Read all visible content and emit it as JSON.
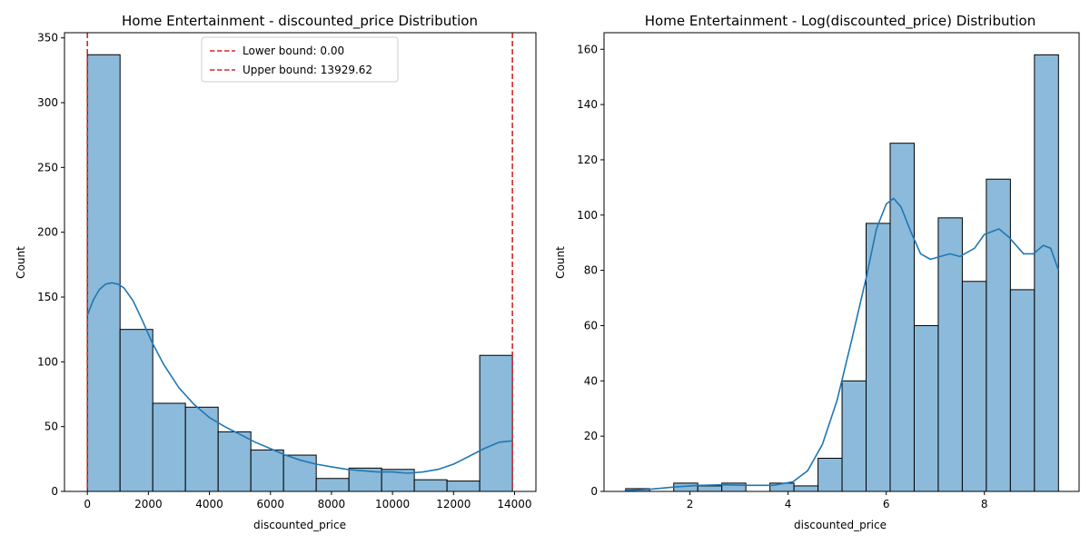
{
  "chart_data": [
    {
      "type": "bar",
      "title": "Home Entertainment - discounted_price Distribution",
      "xlabel": "discounted_price",
      "ylabel": "Count",
      "xlim": [
        -750,
        14700
      ],
      "ylim": [
        0,
        354
      ],
      "xticks": [
        0,
        2000,
        4000,
        6000,
        8000,
        10000,
        12000,
        14000
      ],
      "yticks": [
        0,
        50,
        100,
        150,
        200,
        250,
        300,
        350
      ],
      "bin_edges": [
        0,
        1071.5,
        2143,
        3214.5,
        4286,
        5357.5,
        6429,
        7500.5,
        8572,
        9643.5,
        10715,
        11786.5,
        12858,
        13929.62
      ],
      "values": [
        337,
        125,
        68,
        65,
        46,
        32,
        28,
        10,
        18,
        17,
        9,
        8,
        105
      ],
      "bar_color": "#8cbada",
      "kde_color": "#1f77b4",
      "kde": {
        "x": [
          0,
          200,
          400,
          600,
          800,
          1000,
          1200,
          1500,
          1800,
          2100,
          2500,
          3000,
          3500,
          4000,
          4500,
          5000,
          5500,
          6000,
          6500,
          7000,
          7500,
          8000,
          8500,
          9000,
          9500,
          10000,
          10500,
          11000,
          11500,
          12000,
          12500,
          13000,
          13500,
          13900
        ],
        "y": [
          136,
          148,
          156,
          160,
          161,
          160,
          157,
          147,
          132,
          116,
          98,
          80,
          67,
          57,
          50,
          44,
          38,
          33,
          28,
          24,
          21,
          19,
          17,
          16,
          15,
          15,
          14,
          15,
          17,
          21,
          27,
          33,
          38,
          39
        ]
      },
      "bounds": [
        {
          "label": "Lower bound: 0.00",
          "value": 0
        },
        {
          "label": "Upper bound: 13929.62",
          "value": 13929.62
        }
      ],
      "bound_color": "#d62728",
      "legend_position": "top-center"
    },
    {
      "type": "bar",
      "title": "Home Entertainment - Log(discounted_price) Distribution",
      "xlabel": "discounted_price",
      "ylabel": "Count",
      "xlim": [
        0.25,
        9.93
      ],
      "ylim": [
        0,
        166
      ],
      "xticks": [
        2,
        4,
        6,
        8
      ],
      "yticks": [
        0,
        20,
        40,
        60,
        80,
        100,
        120,
        140,
        160
      ],
      "bin_edges": [
        0.69,
        1.18,
        1.67,
        2.16,
        2.65,
        3.14,
        3.63,
        4.12,
        4.61,
        5.1,
        5.59,
        6.08,
        6.57,
        7.06,
        7.55,
        8.04,
        8.53,
        9.02,
        9.51
      ],
      "values": [
        1,
        0,
        3,
        2,
        3,
        0,
        3,
        2,
        12,
        40,
        97,
        126,
        60,
        99,
        76,
        113,
        73,
        158
      ],
      "bar_color": "#8cbada",
      "kde_color": "#1f77b4",
      "kde": {
        "x": [
          0.69,
          1.2,
          1.7,
          2.2,
          2.7,
          3.2,
          3.7,
          4.1,
          4.4,
          4.7,
          5.0,
          5.3,
          5.6,
          5.8,
          6.0,
          6.15,
          6.3,
          6.5,
          6.7,
          6.9,
          7.1,
          7.3,
          7.5,
          7.8,
          8.0,
          8.3,
          8.5,
          8.8,
          9.0,
          9.2,
          9.35,
          9.51
        ],
        "y": [
          0.3,
          0.8,
          1.6,
          2.2,
          2.4,
          2.2,
          2.2,
          3.5,
          7.5,
          17,
          33,
          55,
          78,
          95,
          104,
          106,
          103,
          94,
          86,
          84,
          85,
          86,
          85,
          88,
          93,
          95,
          92,
          86,
          86,
          89,
          88,
          80
        ]
      }
    }
  ]
}
